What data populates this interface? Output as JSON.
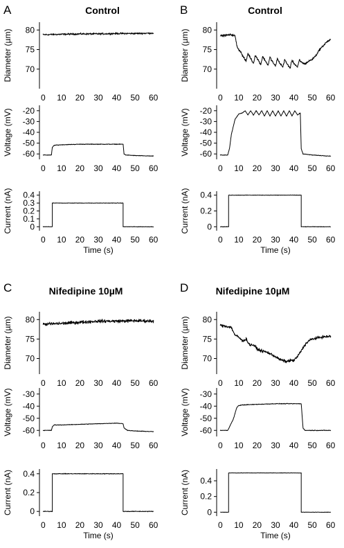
{
  "chart_data": [
    {
      "panel": "A",
      "title": "Control",
      "type": "line",
      "subplots": [
        {
          "ylabel": "Diameter (µm)",
          "ylim": [
            65,
            82
          ],
          "yticks": [
            70,
            75,
            80
          ],
          "xlim": [
            -2,
            62
          ],
          "xticks": [
            0,
            10,
            20,
            30,
            40,
            50,
            60
          ],
          "xlabel": "",
          "noise": 0.25,
          "x": [
            0,
            10,
            20,
            30,
            40,
            50,
            60
          ],
          "y": [
            78.8,
            78.9,
            79.0,
            79.0,
            79.1,
            79.1,
            79.2
          ]
        },
        {
          "ylabel": "Voltage (mV)",
          "ylim": [
            -65,
            -15
          ],
          "yticks": [
            -20,
            -30,
            -40,
            -50,
            -60
          ],
          "xlim": [
            -2,
            62
          ],
          "xticks": [
            0,
            10,
            20,
            30,
            40,
            50,
            60
          ],
          "xlabel": "",
          "noise": 0.3,
          "x": [
            0,
            4.5,
            5,
            6,
            10,
            20,
            30,
            40,
            43.5,
            44,
            45,
            50,
            60
          ],
          "y": [
            -61,
            -61,
            -54,
            -52,
            -51.5,
            -51,
            -51,
            -51,
            -51,
            -60,
            -61,
            -61.5,
            -62
          ]
        },
        {
          "ylabel": "Current (nA)",
          "ylim": [
            -0.05,
            0.45
          ],
          "yticks": [
            0,
            0.1,
            0.2,
            0.3,
            0.4
          ],
          "xlim": [
            -2,
            62
          ],
          "xticks": [
            0,
            10,
            20,
            30,
            40,
            50,
            60
          ],
          "xlabel": "Time (s)",
          "noise": 0.003,
          "x": [
            0,
            5,
            5,
            43.5,
            43.5,
            60
          ],
          "y": [
            0,
            0,
            0.3,
            0.3,
            0,
            0
          ]
        }
      ]
    },
    {
      "panel": "B",
      "title": "Control",
      "type": "line",
      "subplots": [
        {
          "ylabel": "Diameter (µm)",
          "ylim": [
            65,
            82
          ],
          "yticks": [
            70,
            75,
            80
          ],
          "xlim": [
            -2,
            62
          ],
          "xticks": [
            0,
            10,
            20,
            30,
            40,
            50,
            60
          ],
          "xlabel": "",
          "noise": 0.3,
          "x": [
            0,
            6,
            8,
            9,
            10,
            11,
            12,
            14,
            15,
            16,
            18,
            19,
            20,
            22,
            23,
            24,
            26,
            27,
            28,
            30,
            31,
            32,
            34,
            35,
            36,
            38,
            39,
            40,
            42,
            43,
            44,
            46,
            48,
            50,
            52,
            54,
            56,
            58,
            60
          ],
          "y": [
            78.5,
            78.8,
            78.5,
            76,
            75,
            74.5,
            73.5,
            72,
            74,
            73.2,
            71.5,
            73.5,
            72.8,
            71.2,
            73.2,
            72.5,
            71,
            73,
            72.2,
            70.7,
            72.7,
            71.8,
            70.5,
            72.5,
            71.5,
            70.3,
            72.3,
            71.5,
            70.5,
            72.3,
            71.8,
            71.3,
            72,
            72.5,
            73.5,
            75,
            76,
            77,
            77.5
          ]
        },
        {
          "ylabel": "Voltage (mV)",
          "ylim": [
            -65,
            -15
          ],
          "yticks": [
            -20,
            -30,
            -40,
            -50,
            -60
          ],
          "xlim": [
            -2,
            62
          ],
          "xticks": [
            0,
            10,
            20,
            30,
            40,
            50,
            60
          ],
          "xlabel": "",
          "noise": 0.3,
          "x": [
            0,
            4,
            5,
            6,
            8,
            10,
            12,
            13.5,
            15,
            16.5,
            18,
            19.5,
            21,
            22.5,
            24,
            25.5,
            27,
            28.5,
            30,
            31.5,
            33,
            34.5,
            36,
            37.5,
            39,
            40.5,
            42,
            43.5,
            44,
            45,
            50,
            60
          ],
          "y": [
            -61,
            -61,
            -55,
            -42,
            -28,
            -23,
            -22,
            -20,
            -24,
            -20,
            -24,
            -20,
            -24,
            -20,
            -25,
            -20,
            -25,
            -20,
            -25,
            -20,
            -25,
            -20,
            -25,
            -20,
            -25,
            -20,
            -24,
            -22,
            -55,
            -60,
            -61,
            -62
          ]
        },
        {
          "ylabel": "Current (nA)",
          "ylim": [
            -0.05,
            0.45
          ],
          "yticks": [
            0,
            0.2,
            0.4
          ],
          "xlim": [
            -2,
            62
          ],
          "xticks": [
            0,
            10,
            20,
            30,
            40,
            50,
            60
          ],
          "xlabel": "Time (s)",
          "noise": 0.003,
          "x": [
            0,
            4.5,
            4.5,
            44,
            44,
            60
          ],
          "y": [
            0,
            0,
            0.4,
            0.4,
            0,
            0
          ]
        }
      ]
    },
    {
      "panel": "C",
      "title": "Nifedipine 10µM",
      "type": "line",
      "subplots": [
        {
          "ylabel": "Diameter (µm)",
          "ylim": [
            66,
            82
          ],
          "yticks": [
            70,
            75,
            80
          ],
          "xlim": [
            -2,
            62
          ],
          "xticks": [
            0,
            10,
            20,
            30,
            40,
            50,
            60
          ],
          "xlabel": "",
          "noise": 0.45,
          "x": [
            0,
            10,
            20,
            30,
            40,
            50,
            60
          ],
          "y": [
            78.8,
            79.0,
            79.3,
            79.6,
            79.6,
            79.7,
            79.6
          ]
        },
        {
          "ylabel": "Voltage (mV)",
          "ylim": [
            -65,
            -25
          ],
          "yticks": [
            -30,
            -40,
            -50,
            -60
          ],
          "xlim": [
            -2,
            62
          ],
          "xticks": [
            0,
            10,
            20,
            30,
            40,
            50,
            60
          ],
          "xlabel": "",
          "noise": 0.25,
          "x": [
            0,
            4.5,
            5,
            6,
            10,
            20,
            30,
            40,
            43.5,
            44,
            46,
            50,
            60
          ],
          "y": [
            -60,
            -60,
            -57,
            -55.5,
            -55.5,
            -55,
            -54.5,
            -54,
            -54.5,
            -58,
            -60,
            -60.5,
            -61
          ]
        },
        {
          "ylabel": "Current (nA)",
          "ylim": [
            -0.05,
            0.45
          ],
          "yticks": [
            0,
            0.2,
            0.4
          ],
          "xlim": [
            -2,
            62
          ],
          "xticks": [
            0,
            10,
            20,
            30,
            40,
            50,
            60
          ],
          "xlabel": "Time (s)",
          "noise": 0.004,
          "x": [
            0,
            5,
            5,
            43.5,
            43.5,
            60
          ],
          "y": [
            0,
            0,
            0.4,
            0.4,
            0,
            0
          ]
        }
      ]
    },
    {
      "panel": "D",
      "title": "Nifedipine 10µM",
      "type": "line",
      "subplots": [
        {
          "ylabel": "Diameter (µm)",
          "ylim": [
            66,
            82
          ],
          "yticks": [
            70,
            75,
            80
          ],
          "xlim": [
            -2,
            62
          ],
          "xticks": [
            0,
            10,
            20,
            30,
            40,
            50,
            60
          ],
          "xlabel": "",
          "noise": 0.4,
          "x": [
            0,
            3,
            6,
            8,
            10,
            12,
            14,
            16,
            18,
            20,
            22,
            24,
            26,
            28,
            30,
            32,
            34,
            36,
            38,
            40,
            42,
            44,
            46,
            48,
            50,
            52,
            55,
            60
          ],
          "y": [
            78.5,
            78.3,
            78,
            76,
            75.5,
            74.5,
            75,
            73.5,
            73.5,
            72.5,
            72,
            71.8,
            71.5,
            71,
            70.5,
            69.8,
            69.5,
            69.2,
            69.5,
            69.5,
            70.5,
            72,
            73.5,
            74.5,
            75,
            75.2,
            75.5,
            75.7
          ]
        },
        {
          "ylabel": "Voltage (mV)",
          "ylim": [
            -65,
            -25
          ],
          "yticks": [
            -30,
            -40,
            -50,
            -60
          ],
          "xlim": [
            -2,
            62
          ],
          "xticks": [
            0,
            10,
            20,
            30,
            40,
            50,
            60
          ],
          "xlabel": "",
          "noise": 0.3,
          "x": [
            0,
            4,
            5,
            6,
            7,
            8,
            9,
            10,
            12,
            20,
            30,
            40,
            44,
            45,
            46,
            50,
            60
          ],
          "y": [
            -60,
            -60,
            -57,
            -54,
            -51,
            -46,
            -41,
            -39.5,
            -39,
            -38.5,
            -38,
            -38,
            -38,
            -58,
            -60,
            -60,
            -60
          ]
        },
        {
          "ylabel": "Current (nA)",
          "ylim": [
            -0.05,
            0.55
          ],
          "yticks": [
            0,
            0.2,
            0.4
          ],
          "xlim": [
            -2,
            62
          ],
          "xticks": [
            0,
            10,
            20,
            30,
            40,
            50,
            60
          ],
          "xlabel": "Time (s)",
          "noise": 0.0025,
          "x": [
            0,
            4.5,
            4.5,
            44,
            44,
            60
          ],
          "y": [
            0,
            0,
            0.5,
            0.5,
            0,
            0
          ]
        }
      ]
    }
  ]
}
